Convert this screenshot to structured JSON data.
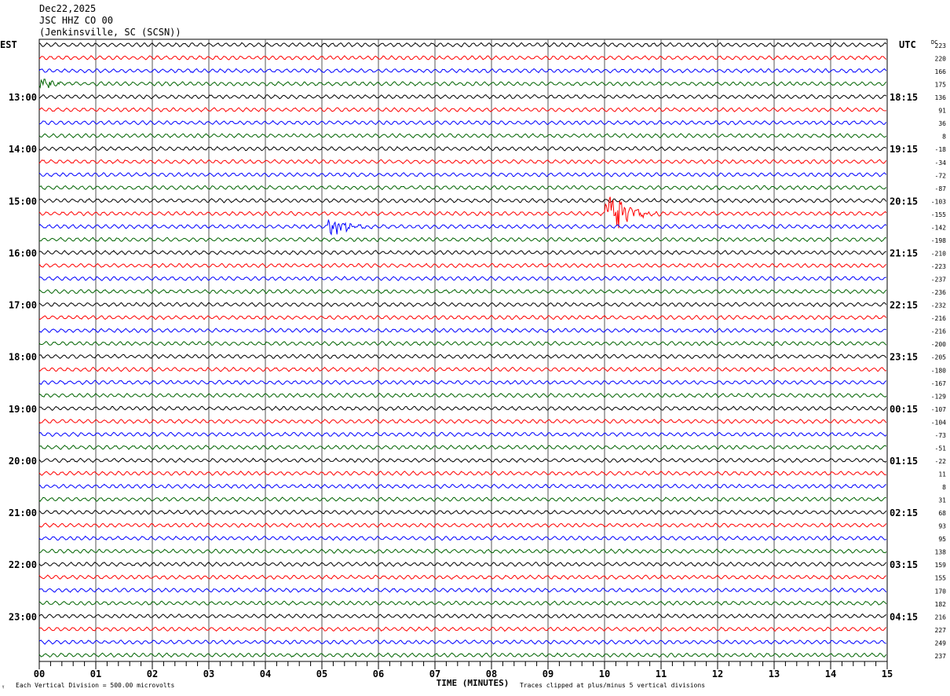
{
  "header": {
    "date": "Dec22,2025",
    "channel": "JSC HHZ CO 00",
    "location": "(Jenkinsville, SC (SCSN))"
  },
  "left_tz": "EST",
  "right_tz": "UTC",
  "dc_label": "DC",
  "footer": {
    "corner_mark": "ᵞ",
    "scale_note": "Each Vertical Division =  500.00 microvolts",
    "xlabel": "TIME (MINUTES)",
    "clip_note": "Traces clipped at plus/minus 5 vertical divisions"
  },
  "chart_data": {
    "type": "line",
    "title": "JSC HHZ CO 00 helicorder",
    "xlabel": "TIME (MINUTES)",
    "xlim": [
      0,
      15
    ],
    "x_ticks": [
      "00",
      "01",
      "02",
      "03",
      "04",
      "05",
      "06",
      "07",
      "08",
      "09",
      "10",
      "11",
      "12",
      "13",
      "14",
      "15"
    ],
    "minor_ticks_per_minute": 5,
    "trace_colors": [
      "#000000",
      "#ff0000",
      "#0000ff",
      "#006400"
    ],
    "left_labels": [
      {
        "row": 4,
        "text": "13:00"
      },
      {
        "row": 8,
        "text": "14:00"
      },
      {
        "row": 12,
        "text": "15:00"
      },
      {
        "row": 16,
        "text": "16:00"
      },
      {
        "row": 20,
        "text": "17:00"
      },
      {
        "row": 24,
        "text": "18:00"
      },
      {
        "row": 28,
        "text": "19:00"
      },
      {
        "row": 32,
        "text": "20:00"
      },
      {
        "row": 36,
        "text": "21:00"
      },
      {
        "row": 40,
        "text": "22:00"
      },
      {
        "row": 44,
        "text": "23:00"
      }
    ],
    "right_labels": [
      {
        "row": 4,
        "text": "18:15"
      },
      {
        "row": 8,
        "text": "19:15"
      },
      {
        "row": 12,
        "text": "20:15"
      },
      {
        "row": 16,
        "text": "21:15"
      },
      {
        "row": 20,
        "text": "22:15"
      },
      {
        "row": 24,
        "text": "23:15"
      },
      {
        "row": 28,
        "text": "00:15"
      },
      {
        "row": 32,
        "text": "01:15"
      },
      {
        "row": 36,
        "text": "02:15"
      },
      {
        "row": 40,
        "text": "03:15"
      },
      {
        "row": 44,
        "text": "04:15"
      }
    ],
    "dc_offsets": [
      223,
      220,
      166,
      175,
      136,
      91,
      36,
      8,
      -18,
      -34,
      -72,
      -87,
      -103,
      -155,
      -142,
      -198,
      -210,
      -223,
      -237,
      -236,
      -232,
      -216,
      -216,
      -200,
      -205,
      -180,
      -167,
      -129,
      -107,
      -104,
      -73,
      -51,
      -22,
      11,
      8,
      31,
      68,
      93,
      95,
      138,
      159,
      155,
      170,
      182,
      216,
      227,
      249,
      237
    ],
    "events": [
      {
        "row": 3,
        "start_min": 0.0,
        "end_min": 0.9,
        "peak_div": 0.5
      },
      {
        "row": 14,
        "start_min": 5.1,
        "end_min": 6.0,
        "peak_div": 1.3
      },
      {
        "row": 13,
        "start_min": 10.0,
        "end_min": 11.0,
        "peak_div": 3.0
      }
    ]
  }
}
